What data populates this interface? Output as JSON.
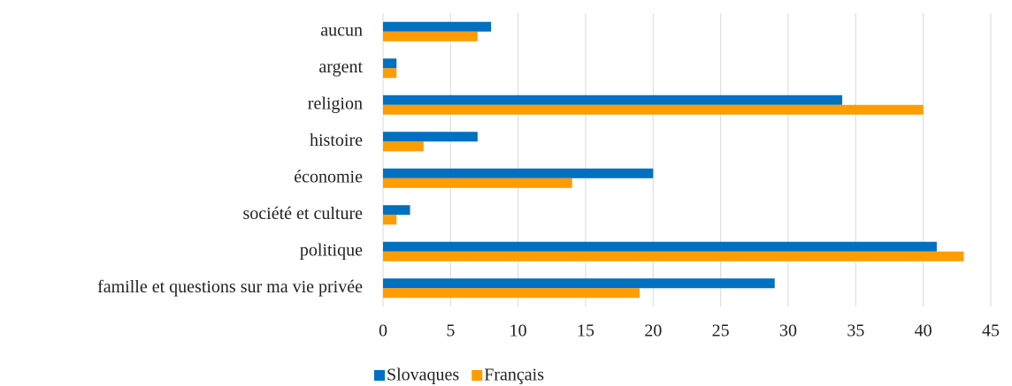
{
  "chart_data": {
    "type": "hbar",
    "categories": [
      "aucun",
      "argent",
      "religion",
      "histoire",
      "économie",
      "société et culture",
      "politique",
      "famille et questions sur ma vie privée"
    ],
    "series": [
      {
        "name": "Slovaques",
        "color": "#0070c0",
        "values": [
          8,
          1,
          34,
          7,
          20,
          2,
          41,
          29
        ]
      },
      {
        "name": "Français",
        "color": "#ff9c00",
        "values": [
          7,
          1,
          40,
          3,
          14,
          1,
          43,
          19
        ]
      }
    ],
    "xlim": [
      0,
      45
    ],
    "xticks": [
      0,
      5,
      10,
      15,
      20,
      25,
      30,
      35,
      40,
      45
    ],
    "grid": true,
    "legend": "bottom"
  }
}
